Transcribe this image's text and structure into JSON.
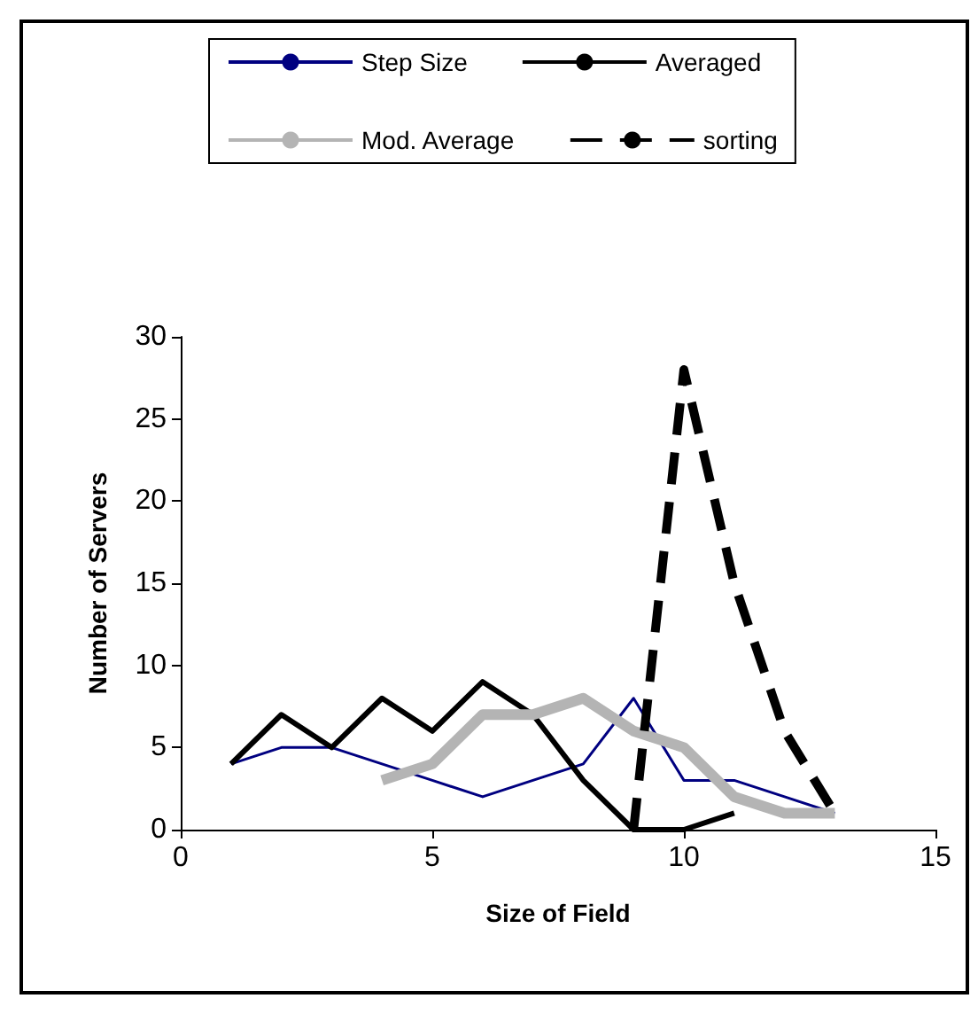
{
  "chart_data": {
    "type": "line",
    "xlabel": "Size of Field",
    "ylabel": "Number of Servers",
    "xlim": [
      0,
      15
    ],
    "xticks": [
      0,
      5,
      10,
      15
    ],
    "ylim": [
      0,
      30
    ],
    "yticks": [
      0,
      5,
      10,
      15,
      20,
      25,
      30
    ],
    "grid": false,
    "legend": "top",
    "marker": "none",
    "series": [
      {
        "name": "Step Size",
        "color": "#000080",
        "x": [
          1,
          2,
          3,
          4,
          5,
          6,
          7,
          8,
          9,
          10,
          11,
          12,
          13
        ],
        "values": [
          4,
          5,
          5,
          4,
          3,
          2,
          3,
          4,
          8,
          3,
          3,
          2,
          1
        ],
        "line_style": "solid"
      },
      {
        "name": "Averaged",
        "color": "#000000",
        "x": [
          1,
          2,
          3,
          4,
          5,
          6,
          7,
          8,
          9,
          10,
          11
        ],
        "values": [
          4,
          7,
          5,
          8,
          6,
          9,
          7,
          3,
          0,
          0,
          1
        ],
        "line_style": "solid"
      },
      {
        "name": "Mod. Average",
        "color": "#b4b4b4",
        "x": [
          4,
          5,
          6,
          7,
          8,
          9,
          10,
          11,
          12,
          13
        ],
        "values": [
          3,
          4,
          7,
          7,
          8,
          6,
          5,
          2,
          1,
          1
        ],
        "line_style": "solid"
      },
      {
        "name": "sorting",
        "color": "#000000",
        "x": [
          9,
          10,
          11,
          12,
          13
        ],
        "values": [
          0,
          28,
          15,
          6,
          1
        ],
        "line_style": "dashed"
      }
    ]
  }
}
